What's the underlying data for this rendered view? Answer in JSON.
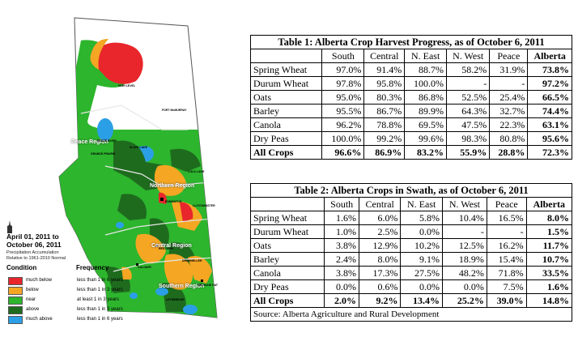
{
  "map": {
    "title_line1": "April 01, 2011 to",
    "title_line2": "October 06, 2011",
    "subtitle_line1": "Precipitation Accumulation",
    "subtitle_line2": "Relative to 1961-2010 Normal",
    "condition_header": "Condition",
    "frequency_header": "Frequency",
    "legend": [
      {
        "condition": "much below",
        "frequency": "less than 1 in 6 years",
        "color": "#e8262c"
      },
      {
        "condition": "below",
        "frequency": "less than 1 in 3 years",
        "color": "#f5a623"
      },
      {
        "condition": "near",
        "frequency": "at least 1 in 3 years",
        "color": "#2db52d"
      },
      {
        "condition": "above",
        "frequency": "less than 1 in 3 years",
        "color": "#1e6b1e"
      },
      {
        "condition": "much above",
        "frequency": "less than 1 in 6 years",
        "color": "#2b9fe6"
      }
    ],
    "regions": [
      "Peace Region",
      "Northern Region",
      "Central Region",
      "Southern Region"
    ],
    "towns": [
      "FORT McMURRAY",
      "GRANDE PRAIRIE",
      "COLD LAKE",
      "EDMONTON",
      "RED DEER",
      "CALGARY",
      "MEDICINE HAT",
      "LETHBRIDGE",
      "HIGH LEVEL",
      "PEACE RIVER",
      "LLOYDMINSTER",
      "DRUMHELLER",
      "SLAVE LAKE"
    ]
  },
  "table1": {
    "title": "Table 1:  Alberta Crop Harvest Progress, as of October 6, 2011",
    "headers": [
      "",
      "South",
      "Central",
      "N. East",
      "N. West",
      "Peace",
      "Alberta"
    ],
    "rows": [
      {
        "crop": "Spring Wheat",
        "values": [
          "97.0%",
          "91.4%",
          "88.7%",
          "58.2%",
          "31.9%"
        ],
        "alberta": "73.8%"
      },
      {
        "crop": "Durum Wheat",
        "values": [
          "97.8%",
          "95.8%",
          "100.0%",
          "-",
          "-"
        ],
        "alberta": "97.2%"
      },
      {
        "crop": "Oats",
        "values": [
          "95.0%",
          "80.3%",
          "86.8%",
          "52.5%",
          "25.4%"
        ],
        "alberta": "66.5%"
      },
      {
        "crop": "Barley",
        "values": [
          "95.5%",
          "86.7%",
          "89.9%",
          "64.3%",
          "32.7%"
        ],
        "alberta": "74.4%"
      },
      {
        "crop": "Canola",
        "values": [
          "96.2%",
          "78.8%",
          "69.5%",
          "47.5%",
          "22.3%"
        ],
        "alberta": "63.1%"
      },
      {
        "crop": "Dry Peas",
        "values": [
          "100.0%",
          "99.2%",
          "99.6%",
          "98.3%",
          "80.8%"
        ],
        "alberta": "95.6%"
      },
      {
        "crop": "All Crops",
        "values": [
          "96.6%",
          "86.9%",
          "83.2%",
          "55.9%",
          "28.8%"
        ],
        "alberta": "72.3%"
      }
    ]
  },
  "table2": {
    "title": "Table 2:  Alberta Crops in Swath, as of October 6, 2011",
    "headers": [
      "",
      "South",
      "Central",
      "N. East",
      "N. West",
      "Peace",
      "Alberta"
    ],
    "rows": [
      {
        "crop": "Spring Wheat",
        "values": [
          "1.6%",
          "6.0%",
          "5.8%",
          "10.4%",
          "16.5%"
        ],
        "alberta": "8.0%"
      },
      {
        "crop": "Durum Wheat",
        "values": [
          "1.0%",
          "2.5%",
          "0.0%",
          "-",
          "-"
        ],
        "alberta": "1.5%"
      },
      {
        "crop": "Oats",
        "values": [
          "3.8%",
          "12.9%",
          "10.2%",
          "12.5%",
          "16.2%"
        ],
        "alberta": "11.7%"
      },
      {
        "crop": "Barley",
        "values": [
          "2.4%",
          "8.0%",
          "9.1%",
          "18.9%",
          "15.4%"
        ],
        "alberta": "10.7%"
      },
      {
        "crop": "Canola",
        "values": [
          "3.8%",
          "17.3%",
          "27.5%",
          "48.2%",
          "71.8%"
        ],
        "alberta": "33.5%"
      },
      {
        "crop": "Dry Peas",
        "values": [
          "0.0%",
          "0.6%",
          "0.0%",
          "0.0%",
          "7.5%"
        ],
        "alberta": "1.6%"
      },
      {
        "crop": "All Crops",
        "values": [
          "2.0%",
          "9.2%",
          "13.4%",
          "25.2%",
          "39.0%"
        ],
        "alberta": "14.8%"
      }
    ],
    "source": "Source: Alberta Agriculture and Rural Development"
  }
}
